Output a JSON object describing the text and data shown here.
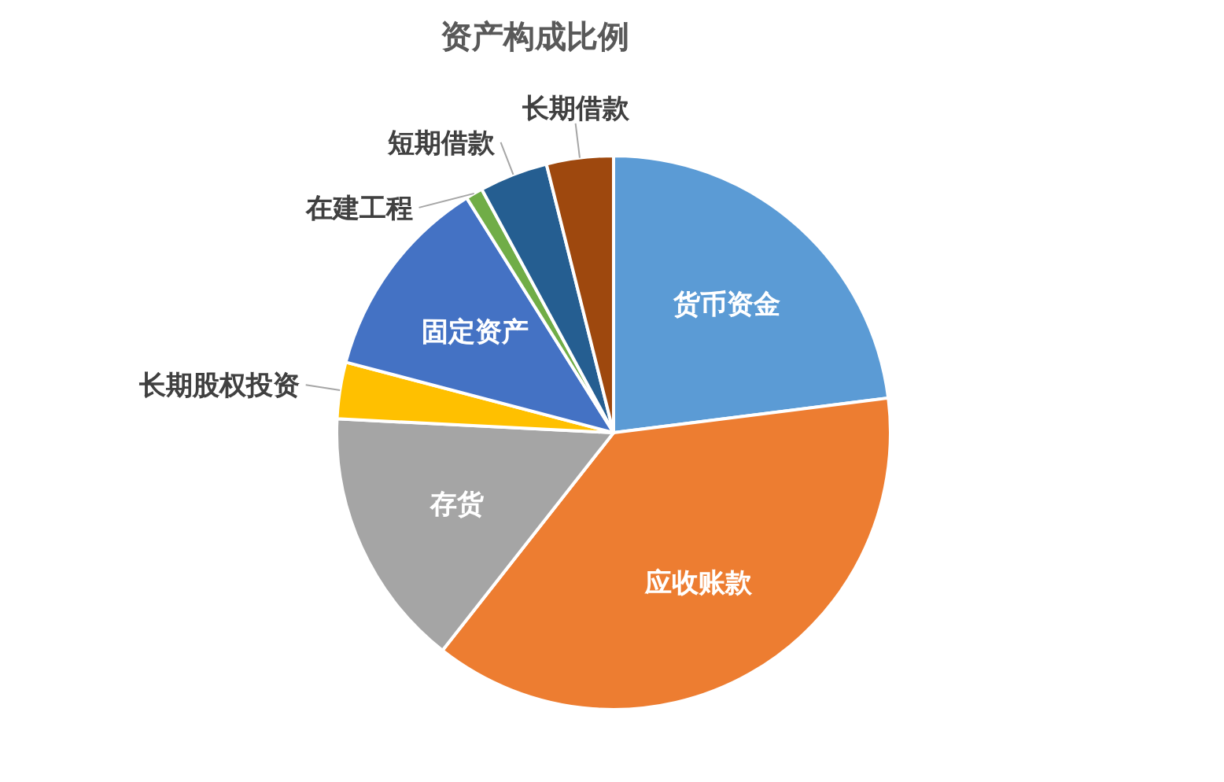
{
  "chart_data": {
    "type": "pie",
    "title": "资产构成比例",
    "categories": [
      "货币资金",
      "应收账款",
      "存货",
      "长期股权投资",
      "固定资产",
      "在建工程",
      "短期借款",
      "长期借款"
    ],
    "values": [
      23.0,
      37.6,
      15.2,
      3.3,
      12.0,
      1.0,
      4.0,
      3.9
    ],
    "colors": [
      "#5b9bd5",
      "#ed7d31",
      "#a5a5a5",
      "#ffc000",
      "#4472c4",
      "#70ad47",
      "#255e91",
      "#9e480e"
    ]
  }
}
